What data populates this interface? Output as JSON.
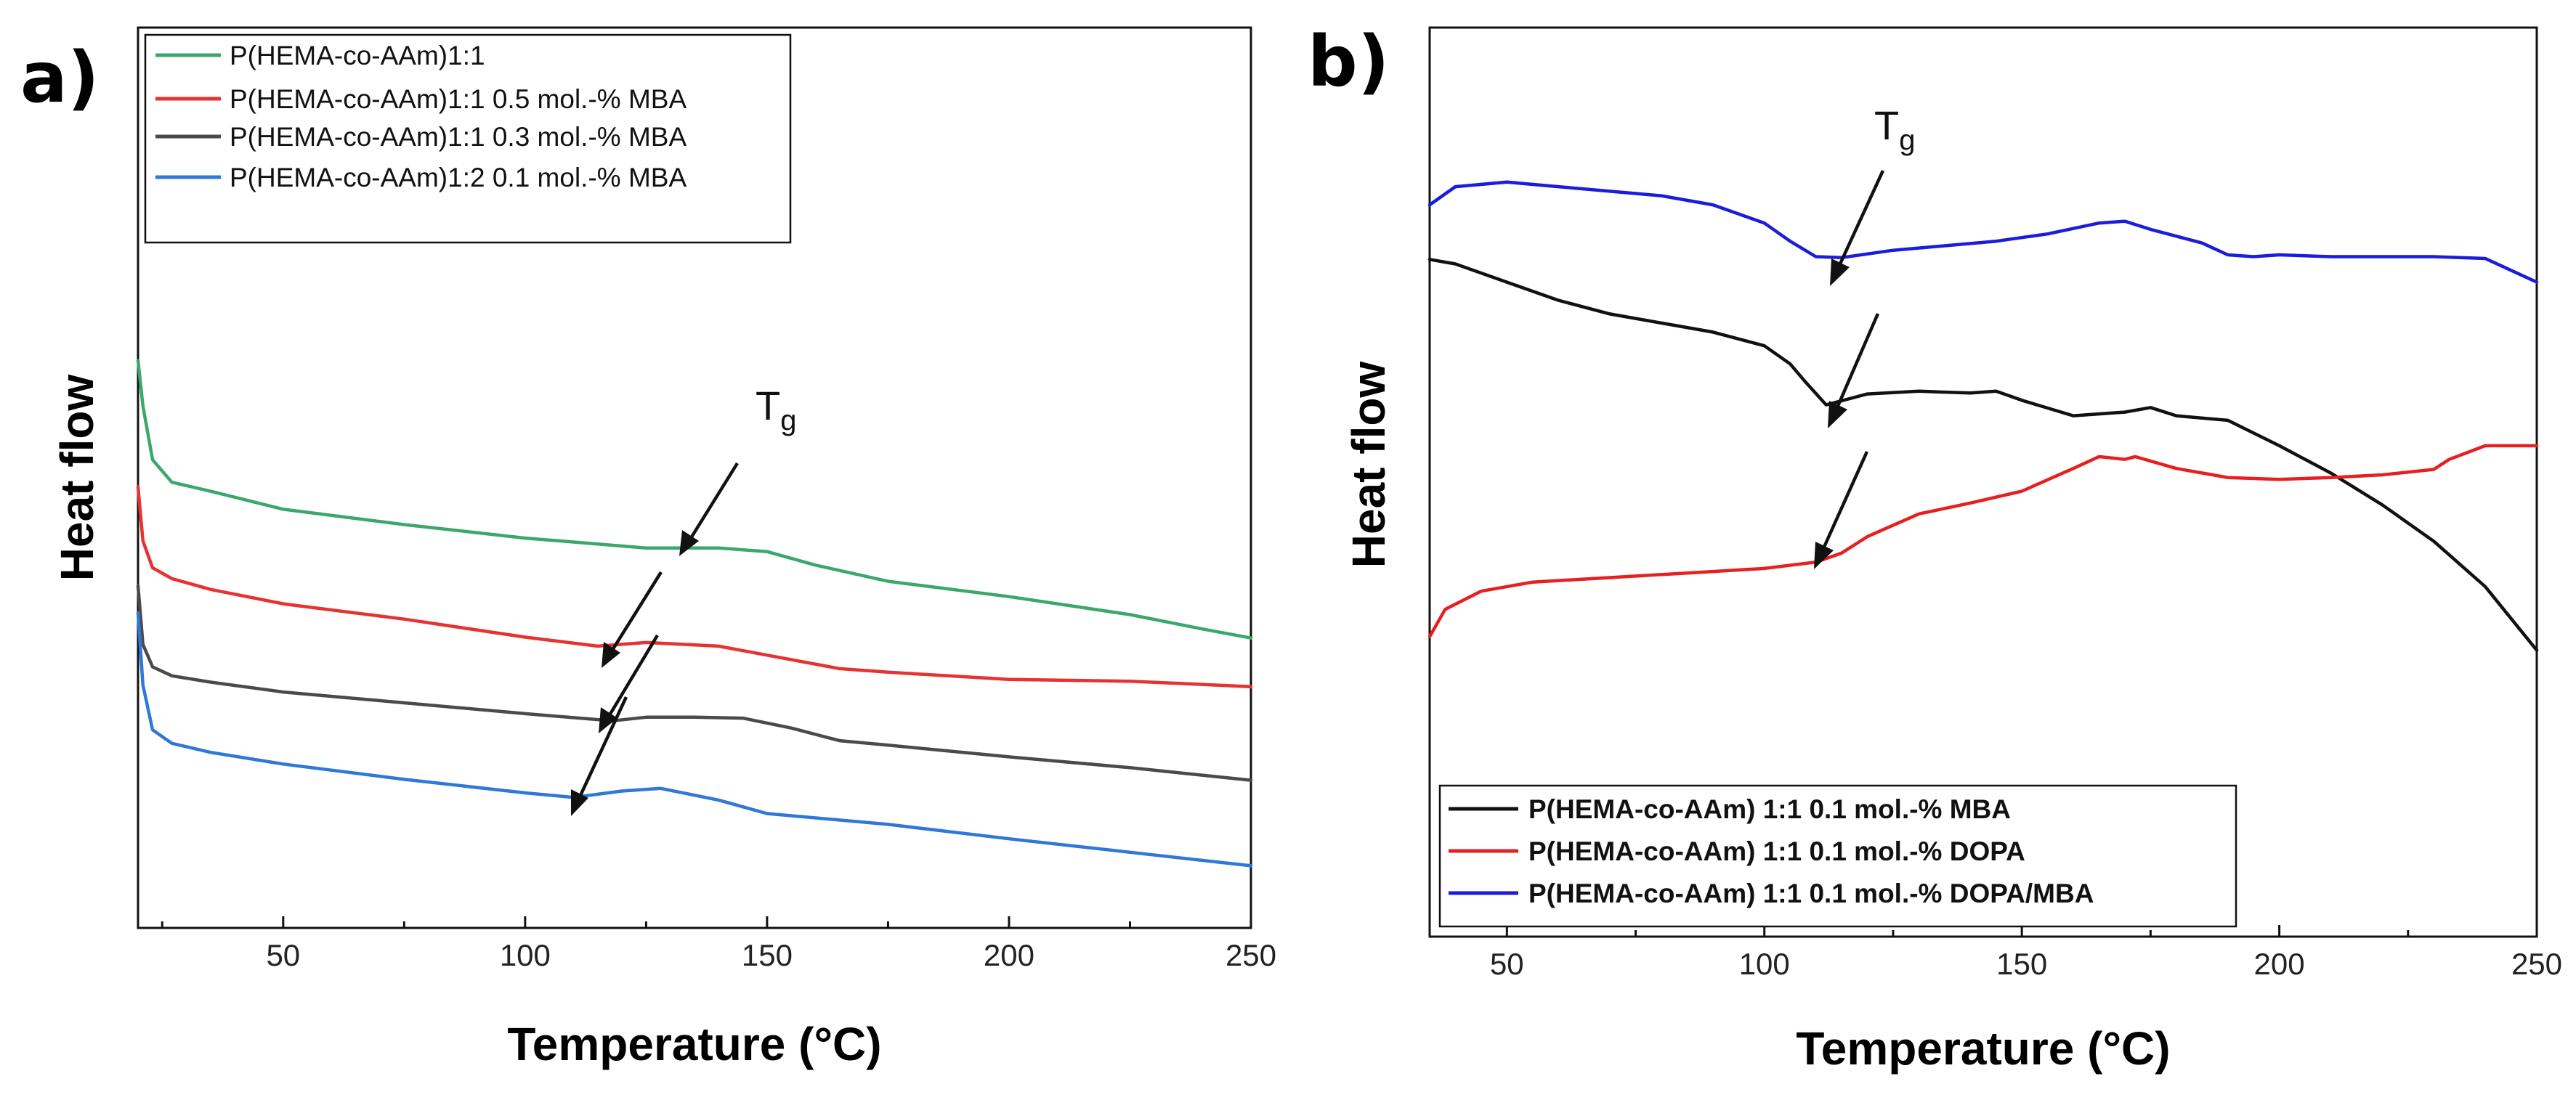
{
  "figure": {
    "panels": [
      "a)",
      "b)"
    ],
    "tg_label": "T",
    "tg_subscript": "g"
  },
  "chart_data": [
    {
      "type": "line",
      "panel": "a)",
      "xlabel": "Temperature (°C)",
      "ylabel": "Heat flow",
      "xlim": [
        20,
        250
      ],
      "ylim": [
        0,
        100
      ],
      "xticks": [
        50,
        100,
        150,
        200,
        250
      ],
      "grid": false,
      "legend_position": "top-left",
      "series": [
        {
          "name": "P(HEMA-co-AAm)1:1",
          "color": "#3aa86b",
          "x": [
            20,
            21,
            23,
            27,
            35,
            50,
            75,
            100,
            125,
            140,
            150,
            160,
            175,
            200,
            225,
            240,
            250
          ],
          "y": [
            63,
            58,
            52,
            49.5,
            48.5,
            46.5,
            44.8,
            43.3,
            42.2,
            42.2,
            41.8,
            40.3,
            38.5,
            36.8,
            34.8,
            33.2,
            32.2
          ]
        },
        {
          "name": "P(HEMA-co-AAm)1:1 0.5 mol.-% MBA",
          "color": "#e63232",
          "x": [
            20,
            21,
            23,
            27,
            35,
            50,
            75,
            100,
            115,
            125,
            140,
            150,
            165,
            175,
            200,
            225,
            250
          ],
          "y": [
            49,
            43,
            40,
            38.8,
            37.6,
            36,
            34.3,
            32.3,
            31.3,
            31.7,
            31.3,
            30.3,
            28.8,
            28.4,
            27.6,
            27.4,
            26.8
          ]
        },
        {
          "name": "P(HEMA-co-AAm)1:1 0.3 mol.-% MBA",
          "color": "#4a4a4a",
          "x": [
            20,
            21,
            23,
            27,
            35,
            50,
            75,
            100,
            118,
            125,
            135,
            145,
            155,
            165,
            175,
            200,
            225,
            250
          ],
          "y": [
            38,
            31.5,
            29,
            28,
            27.3,
            26.2,
            25,
            23.8,
            23,
            23.4,
            23.4,
            23.3,
            22.2,
            20.8,
            20.3,
            19,
            17.8,
            16.4
          ]
        },
        {
          "name": "P(HEMA-co-AAm)1:2 0.1 mol.-% MBA",
          "color": "#2f78d8",
          "x": [
            20,
            21,
            23,
            27,
            35,
            50,
            75,
            100,
            110,
            120,
            128,
            140,
            150,
            175,
            200,
            225,
            250
          ],
          "y": [
            35,
            27,
            22,
            20.5,
            19.5,
            18.2,
            16.5,
            15,
            14.5,
            15.2,
            15.5,
            14.2,
            12.7,
            11.5,
            9.9,
            8.4,
            6.9
          ]
        }
      ],
      "annotations": [
        {
          "text": "Tg",
          "x": 135,
          "y": 58
        }
      ]
    },
    {
      "type": "line",
      "panel": "b)",
      "xlabel": "Temperature (°C)",
      "ylabel": "Heat flow",
      "xlim": [
        35,
        250
      ],
      "ylim": [
        0,
        100
      ],
      "xticks": [
        50,
        100,
        150,
        200,
        250
      ],
      "grid": false,
      "legend_position": "bottom-left",
      "series": [
        {
          "name": "P(HEMA-co-AAm) 1:1 0.1 mol.-% MBA",
          "color": "#111111",
          "x": [
            35,
            40,
            50,
            60,
            70,
            80,
            90,
            100,
            105,
            108,
            112,
            120,
            130,
            140,
            145,
            150,
            160,
            170,
            175,
            180,
            190,
            200,
            210,
            220,
            230,
            240,
            250
          ],
          "y": [
            74.5,
            74,
            72,
            70,
            68.5,
            67.5,
            66.5,
            65,
            63,
            61,
            58.5,
            59.7,
            60,
            59.8,
            60,
            59,
            57.3,
            57.7,
            58.2,
            57.3,
            56.8,
            54,
            51,
            47.5,
            43.5,
            38.5,
            31.5
          ]
        },
        {
          "name": "P(HEMA-co-AAm) 1:1 0.1 mol.-% DOPA",
          "color": "#e62020",
          "x": [
            35,
            38,
            45,
            55,
            70,
            85,
            100,
            110,
            115,
            120,
            130,
            140,
            150,
            160,
            165,
            170,
            172,
            180,
            190,
            200,
            210,
            220,
            230,
            233,
            240,
            250
          ],
          "y": [
            33,
            36,
            38,
            39,
            39.5,
            40,
            40.5,
            41.2,
            42.2,
            44,
            46.5,
            47.7,
            49,
            51.5,
            52.8,
            52.5,
            52.8,
            51.5,
            50.5,
            50.3,
            50.5,
            50.8,
            51.4,
            52.5,
            54,
            54
          ]
        },
        {
          "name": "P(HEMA-co-AAm) 1:1 0.1 mol.-% DOPA/MBA",
          "color": "#1c1cdc",
          "x": [
            35,
            40,
            50,
            60,
            70,
            80,
            90,
            100,
            105,
            110,
            115,
            125,
            135,
            145,
            155,
            165,
            170,
            175,
            185,
            190,
            195,
            200,
            210,
            220,
            230,
            240,
            250
          ],
          "y": [
            80.5,
            82.5,
            83,
            82.5,
            82,
            81.5,
            80.5,
            78.5,
            76.5,
            74.8,
            74.7,
            75.5,
            76,
            76.5,
            77.3,
            78.5,
            78.7,
            77.8,
            76.3,
            75,
            74.8,
            75,
            74.8,
            74.8,
            74.8,
            74.6,
            72
          ]
        }
      ],
      "annotations": [
        {
          "text": "Tg",
          "x": 122,
          "y": 92
        }
      ]
    }
  ]
}
